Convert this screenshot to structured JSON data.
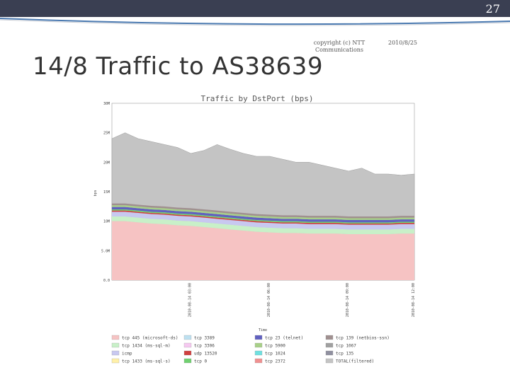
{
  "slide": {
    "page_number": "27",
    "copyright": "copyright (c) NTT Communications",
    "date": "2010/8/25",
    "title": "14/8 Traffic to AS38639"
  },
  "colors": {
    "topbar": "#3a3f52",
    "accent_blue": "#4a79b0",
    "accent_grey": "#c9cdd4",
    "total": "#c4c4c4",
    "base": "#f5c2c2"
  },
  "chart_data": {
    "type": "area",
    "title": "Traffic by DstPort (bps)",
    "xlabel": "Time",
    "ylabel": "bps",
    "ylim": [
      0,
      300000000
    ],
    "yticks": [
      "30M",
      "25M",
      "20M",
      "15M",
      "10M",
      "5.0M",
      "0.0"
    ],
    "x": [
      "2010-08-14 03:00",
      "2010-08-14 03:30",
      "2010-08-14 04:00",
      "2010-08-14 04:30",
      "2010-08-14 05:00",
      "2010-08-14 05:30",
      "2010-08-14 06:00",
      "2010-08-14 06:30",
      "2010-08-14 07:00",
      "2010-08-14 07:30",
      "2010-08-14 08:00",
      "2010-08-14 08:30",
      "2010-08-14 09:00",
      "2010-08-14 09:30",
      "2010-08-14 10:00",
      "2010-08-14 10:30",
      "2010-08-14 11:00",
      "2010-08-14 11:30",
      "2010-08-14 12:00",
      "2010-08-14 12:30",
      "2010-08-14 13:00",
      "2010-08-14 13:30",
      "2010-08-14 14:00",
      "2010-08-14 14:30"
    ],
    "xticks": [
      "2010-08-14 03:00",
      "2010-08-14 06:00",
      "2010-08-14 09:00",
      "2010-08-14 12:00"
    ],
    "series": [
      {
        "name": "tcp 445 (microsoft-ds)",
        "color": "#f6c3c3",
        "values": [
          100,
          100,
          98,
          96,
          95,
          93,
          92,
          90,
          88,
          86,
          84,
          82,
          81,
          80,
          80,
          79,
          79,
          79,
          78,
          78,
          78,
          78,
          79,
          79
        ]
      },
      {
        "name": "tcp 1434 (ms-sql-m)",
        "color": "#c8f0c8",
        "values": [
          8,
          8,
          8,
          8,
          8,
          8,
          8,
          8,
          8,
          8,
          8,
          8,
          8,
          8,
          8,
          8,
          8,
          8,
          8,
          8,
          8,
          8,
          8,
          8
        ]
      },
      {
        "name": "icmp",
        "color": "#c8c8f0",
        "values": [
          8,
          8,
          8,
          8,
          8,
          8,
          8,
          8,
          8,
          8,
          8,
          8,
          8,
          8,
          8,
          8,
          8,
          8,
          8,
          8,
          8,
          8,
          8,
          8
        ]
      },
      {
        "name": "tcp 1433 (ms-sql-s)",
        "color": "#fff0a8",
        "values": [
          0,
          0,
          0,
          0,
          0,
          0,
          0,
          0,
          0,
          0,
          0,
          0,
          0,
          0,
          0,
          0,
          0,
          0,
          0,
          0,
          0,
          0,
          0,
          0
        ]
      },
      {
        "name": "tcp 3389",
        "color": "#bde0f0",
        "values": [
          0,
          0,
          0,
          0,
          0,
          0,
          0,
          0,
          0,
          0,
          0,
          0,
          0,
          0,
          0,
          0,
          0,
          0,
          0,
          0,
          0,
          0,
          0,
          0
        ]
      },
      {
        "name": "tcp 3306",
        "color": "#f5c8f0",
        "values": [
          0,
          0,
          0,
          0,
          0,
          0,
          0,
          0,
          0,
          0,
          0,
          0,
          0,
          0,
          0,
          0,
          0,
          0,
          0,
          0,
          0,
          0,
          0,
          0
        ]
      },
      {
        "name": "udp 13520",
        "color": "#d04040",
        "values": [
          2,
          2,
          2,
          2,
          2,
          2,
          2,
          2,
          2,
          2,
          2,
          2,
          2,
          2,
          2,
          2,
          2,
          2,
          2,
          2,
          2,
          2,
          2,
          2
        ]
      },
      {
        "name": "tcp 0",
        "color": "#70d070",
        "values": [
          2,
          2,
          2,
          2,
          2,
          2,
          2,
          2,
          2,
          2,
          2,
          2,
          2,
          2,
          2,
          2,
          2,
          2,
          2,
          2,
          2,
          2,
          2,
          2
        ]
      },
      {
        "name": "tcp 23 (telnet)",
        "color": "#6060c0",
        "values": [
          4,
          4,
          4,
          4,
          4,
          4,
          4,
          4,
          4,
          4,
          4,
          4,
          4,
          4,
          4,
          4,
          4,
          4,
          4,
          4,
          4,
          4,
          4,
          4
        ]
      },
      {
        "name": "tcp 5900",
        "color": "#a8d088",
        "values": [
          3,
          3,
          3,
          3,
          3,
          3,
          3,
          3,
          3,
          3,
          3,
          3,
          3,
          3,
          3,
          3,
          3,
          3,
          3,
          3,
          3,
          3,
          3,
          3
        ]
      },
      {
        "name": "tcp 1024",
        "color": "#70e0e0",
        "values": [
          0,
          0,
          0,
          0,
          0,
          0,
          0,
          0,
          0,
          0,
          0,
          0,
          0,
          0,
          0,
          0,
          0,
          0,
          0,
          0,
          0,
          0,
          0,
          0
        ]
      },
      {
        "name": "tcp 2372",
        "color": "#f09090",
        "values": [
          0,
          0,
          0,
          0,
          0,
          0,
          0,
          0,
          0,
          0,
          0,
          0,
          0,
          0,
          0,
          0,
          0,
          0,
          0,
          0,
          0,
          0,
          0,
          0
        ]
      },
      {
        "name": "tcp 139 (netbios-ssn)",
        "color": "#a09090",
        "values": [
          3,
          3,
          3,
          3,
          3,
          3,
          3,
          3,
          3,
          3,
          3,
          3,
          3,
          3,
          3,
          3,
          3,
          3,
          3,
          3,
          3,
          3,
          3,
          3
        ]
      },
      {
        "name": "tcp 1067",
        "color": "#a0a0a0",
        "values": [
          0,
          0,
          0,
          0,
          0,
          0,
          0,
          0,
          0,
          0,
          0,
          0,
          0,
          0,
          0,
          0,
          0,
          0,
          0,
          0,
          0,
          0,
          0,
          0
        ]
      },
      {
        "name": "tcp 135",
        "color": "#9090a0",
        "values": [
          0,
          0,
          0,
          0,
          0,
          0,
          0,
          0,
          0,
          0,
          0,
          0,
          0,
          0,
          0,
          0,
          0,
          0,
          0,
          0,
          0,
          0,
          0,
          0
        ]
      },
      {
        "name": "TOTAL(filtered)",
        "color": "#c4c4c4",
        "values": [
          240,
          250,
          240,
          235,
          230,
          225,
          215,
          220,
          230,
          222,
          215,
          210,
          210,
          205,
          200,
          200,
          195,
          190,
          185,
          190,
          180,
          180,
          178,
          180
        ]
      }
    ],
    "grid": false,
    "legend_position": "bottom"
  }
}
